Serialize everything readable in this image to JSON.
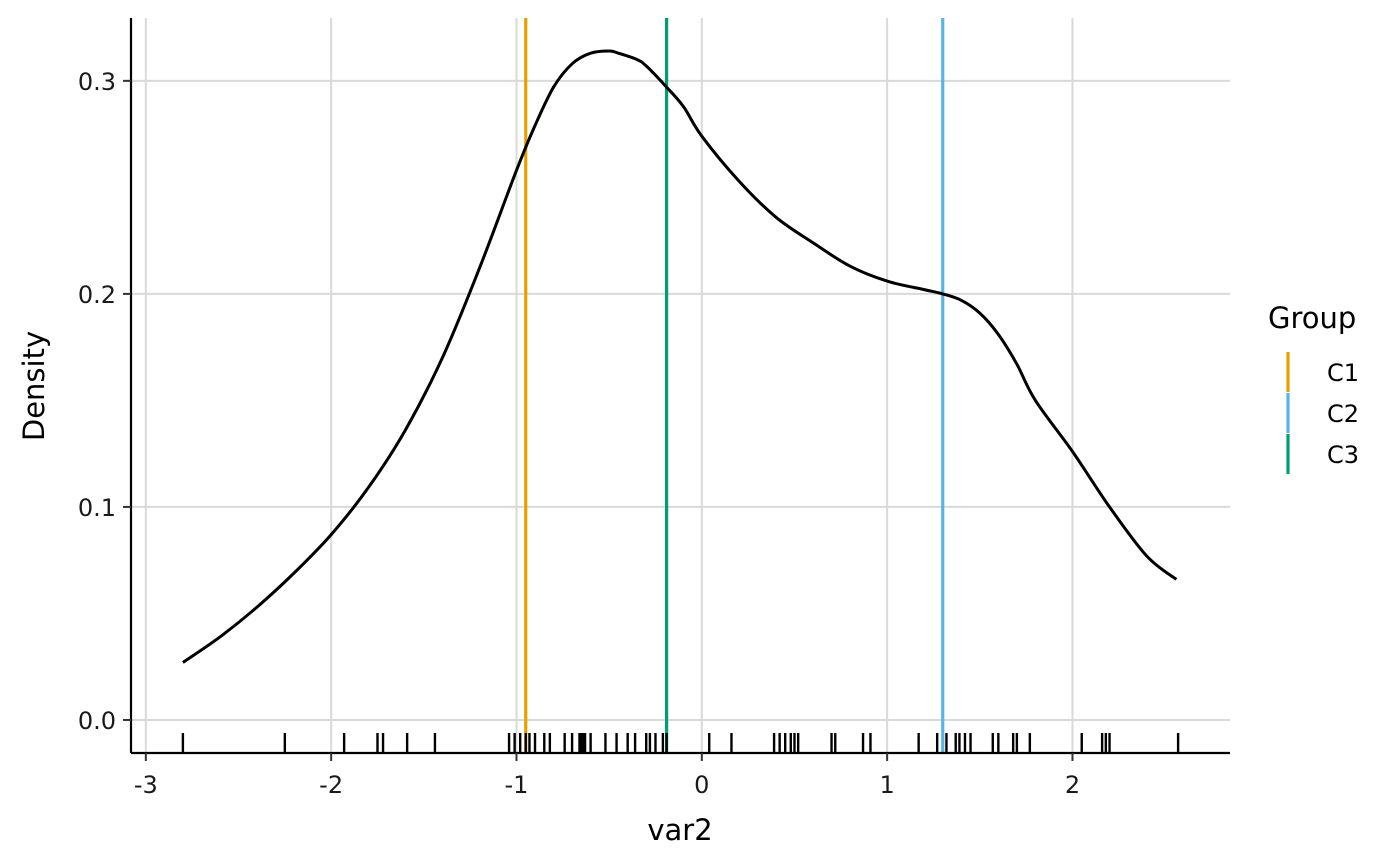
{
  "chart_data": {
    "type": "line",
    "xlabel": "var2",
    "ylabel": "Density",
    "xlim": [
      -3.08,
      2.85
    ],
    "ylim": [
      -0.0155,
      0.3295
    ],
    "x_ticks": [
      -3,
      -2,
      -1,
      0,
      1,
      2
    ],
    "x_tick_labels": [
      "-3",
      "-2",
      "-1",
      "0",
      "1",
      "2"
    ],
    "y_ticks": [
      0.0,
      0.1,
      0.2,
      0.3
    ],
    "y_tick_labels": [
      "0.0",
      "0.1",
      "0.2",
      "0.3"
    ],
    "grid": true,
    "density_curve": {
      "color": "#000000",
      "points": [
        [
          -2.8,
          0.027
        ],
        [
          -2.6,
          0.039
        ],
        [
          -2.4,
          0.053
        ],
        [
          -2.2,
          0.069
        ],
        [
          -2.0,
          0.087
        ],
        [
          -1.8,
          0.109
        ],
        [
          -1.6,
          0.136
        ],
        [
          -1.4,
          0.17
        ],
        [
          -1.2,
          0.212
        ],
        [
          -1.0,
          0.258
        ],
        [
          -0.9,
          0.279
        ],
        [
          -0.8,
          0.297
        ],
        [
          -0.7,
          0.308
        ],
        [
          -0.6,
          0.313
        ],
        [
          -0.5,
          0.314
        ],
        [
          -0.45,
          0.313
        ],
        [
          -0.35,
          0.31
        ],
        [
          -0.3,
          0.307
        ],
        [
          -0.2,
          0.298
        ],
        [
          -0.1,
          0.288
        ],
        [
          0.0,
          0.274
        ],
        [
          0.2,
          0.253
        ],
        [
          0.4,
          0.236
        ],
        [
          0.6,
          0.224
        ],
        [
          0.8,
          0.213
        ],
        [
          1.0,
          0.206
        ],
        [
          1.2,
          0.202
        ],
        [
          1.3,
          0.2
        ],
        [
          1.4,
          0.197
        ],
        [
          1.5,
          0.191
        ],
        [
          1.6,
          0.181
        ],
        [
          1.7,
          0.167
        ],
        [
          1.8,
          0.15
        ],
        [
          2.0,
          0.126
        ],
        [
          2.2,
          0.1
        ],
        [
          2.4,
          0.077
        ],
        [
          2.56,
          0.066
        ]
      ]
    },
    "rug": [
      -2.8,
      -2.25,
      -1.93,
      -1.75,
      -1.72,
      -1.59,
      -1.44,
      -1.04,
      -1.01,
      -0.98,
      -0.95,
      -0.93,
      -0.9,
      -0.85,
      -0.82,
      -0.74,
      -0.7,
      -0.66,
      -0.65,
      -0.64,
      -0.63,
      -0.6,
      -0.52,
      -0.46,
      -0.4,
      -0.36,
      -0.3,
      -0.28,
      -0.25,
      -0.21,
      -0.19,
      0.04,
      0.16,
      0.39,
      0.42,
      0.45,
      0.48,
      0.5,
      0.52,
      0.7,
      0.72,
      0.87,
      0.91,
      1.17,
      1.27,
      1.32,
      1.37,
      1.39,
      1.42,
      1.45,
      1.57,
      1.6,
      1.68,
      1.7,
      1.77,
      2.05,
      2.16,
      2.18,
      2.2,
      2.57
    ],
    "vlines": [
      {
        "x": -0.95,
        "color": "#E69F00"
      },
      {
        "x": 1.3,
        "color": "#56B4E9"
      },
      {
        "x": -0.19,
        "color": "#009E73"
      }
    ],
    "legend": {
      "title": "Group",
      "position": "right",
      "items": [
        {
          "label": "C1",
          "color": "#E69F00"
        },
        {
          "label": "C2",
          "color": "#56B4E9"
        },
        {
          "label": "C3",
          "color": "#009E73"
        }
      ]
    }
  }
}
